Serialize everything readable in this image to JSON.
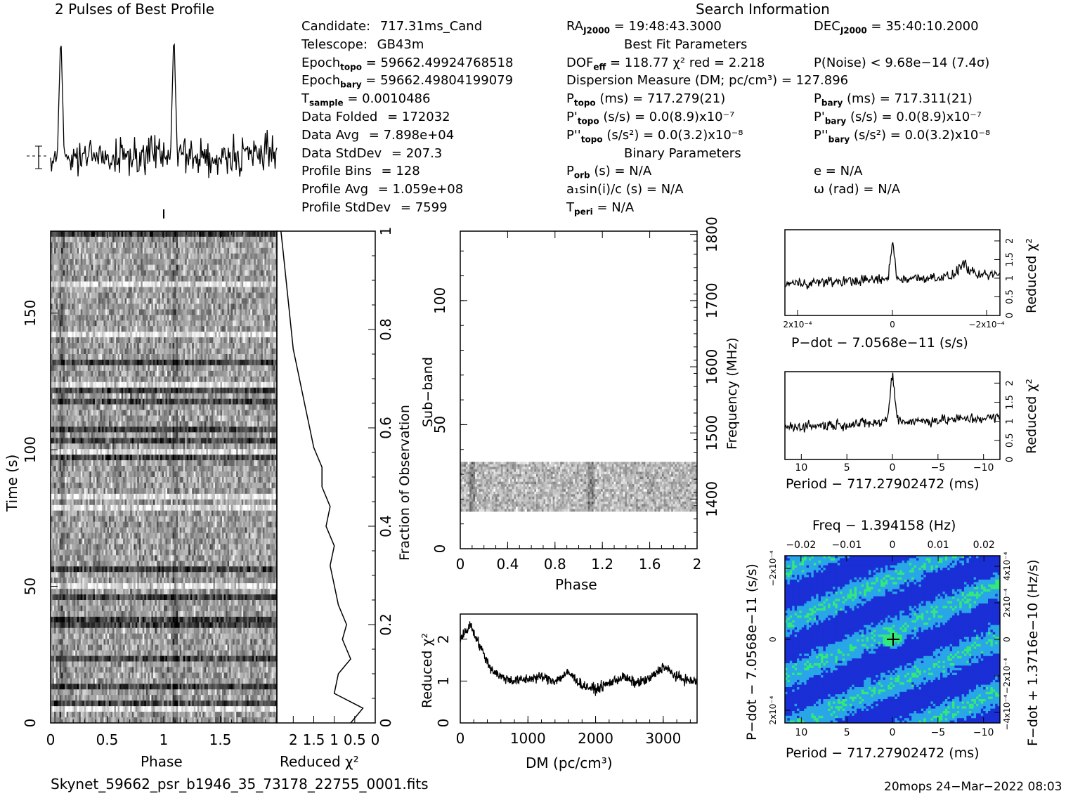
{
  "header": {
    "left_title": "2 Pulses of Best Profile",
    "right_title": "Search Information"
  },
  "info": {
    "col1": [
      {
        "label": "Candidate:",
        "value": "717.31ms_Cand"
      },
      {
        "label": "Telescope:",
        "value": "GB43m"
      },
      {
        "label": "Epoch",
        "sub": "topo",
        "value": "= 59662.49924768518"
      },
      {
        "label": "Epoch",
        "sub": "bary",
        "value": "= 59662.49804199079"
      },
      {
        "label": "T",
        "sub": "sample",
        "value": "=   0.0010486"
      },
      {
        "label": "Data Folded",
        "value": "=   172032"
      },
      {
        "label": "Data Avg",
        "value": "=   7.898e+04"
      },
      {
        "label": "Data StdDev",
        "value": "=   207.3"
      },
      {
        "label": "Profile Bins",
        "value": "=   128"
      },
      {
        "label": "Profile Avg",
        "value": "=   1.059e+08"
      },
      {
        "label": "Profile StdDev",
        "value": "=   7599"
      }
    ],
    "col2": [
      {
        "label": "RA",
        "sub": "J2000",
        "value": "= 19:48:43.3000"
      },
      {
        "label": "Best Fit Parameters",
        "centered": true
      },
      {
        "label": "DOF",
        "sub": "eff",
        "value": "= 118.77  χ² red = 2.218"
      },
      {
        "label": "Dispersion Measure (DM; pc/cm³) = 127.896"
      },
      {
        "label": "P",
        "sub": "topo",
        "value": "(ms)  =  717.279(21)"
      },
      {
        "label": "P'",
        "sub": "topo",
        "value": "(s/s) = 0.0(8.9)x10⁻⁷"
      },
      {
        "label": "P''",
        "sub": "topo",
        "value": "(s/s²) = 0.0(3.2)x10⁻⁸"
      },
      {
        "label": "Binary Parameters",
        "centered": true
      },
      {
        "label": "P",
        "sub": "orb",
        "value": "(s) = N/A"
      },
      {
        "label": "a₁sin(i)/c (s) = N/A"
      },
      {
        "label": "T",
        "sub": "peri",
        "value": "= N/A"
      }
    ],
    "col3": [
      {
        "label": "DEC",
        "sub": "J2000",
        "value": "= 35:40:10.2000"
      },
      {
        "label": ""
      },
      {
        "label": "P(Noise) < 9.68e−14  (7.4σ)"
      },
      {
        "label": ""
      },
      {
        "label": "P",
        "sub": "bary",
        "value": "(ms) =  717.311(21)"
      },
      {
        "label": "P'",
        "sub": "bary",
        "value": "(s/s) = 0.0(8.9)x10⁻⁷"
      },
      {
        "label": "P''",
        "sub": "bary",
        "value": "(s/s²) = 0.0(3.2)x10⁻⁸"
      },
      {
        "label": ""
      },
      {
        "label": "e = N/A"
      },
      {
        "label": "ω (rad) = N/A"
      },
      {
        "label": ""
      }
    ]
  },
  "footer": {
    "filename": "Skynet_59662_psr_b1946_35_73178_22755_0001.fits",
    "stamp": "20mops 24−Mar−2022 08:03"
  },
  "axes": {
    "time_label": "Time (s)",
    "phase_label": "Phase",
    "redchi_label": "Reduced χ²",
    "fraction_label": "Fraction of Observation",
    "subband_label": "Sub−band",
    "frequency_label": "Frequency (MHz)",
    "dm_label": "DM (pc/cm³)",
    "pdot_label": "P−dot − 7.0568e−11 (s/s)",
    "period_label": "Period − 717.27902472 (ms)",
    "freq_label": "Freq − 1.394158 (Hz)",
    "pdot_map_label": "P−dot − 7.0568e−11 (s/s)",
    "fdot_label": "F−dot + 1.3716e−10 (Hz/s)"
  },
  "chart_data": [
    {
      "type": "line",
      "name": "profile",
      "title": "2 Pulses of Best Profile",
      "x": [
        0,
        2
      ],
      "peaks_at_phase": [
        0.09,
        1.09
      ]
    },
    {
      "type": "heatmap",
      "name": "time-phase",
      "xlabel": "Phase",
      "ylabel": "Time (s)",
      "xlim": [
        0,
        2
      ],
      "ylim": [
        0,
        180
      ],
      "xticks": [
        "0",
        "0.5",
        "1",
        "1.5"
      ],
      "yticks": [
        "0",
        "50",
        "100",
        "150"
      ]
    },
    {
      "type": "line",
      "name": "time-redchi",
      "xlabel": "Reduced χ²",
      "ylabel2": "Fraction of Observation",
      "xticks": [
        "2",
        "1.5",
        "1",
        "0.5",
        "0"
      ],
      "yticks": [
        "0",
        "0.2",
        "0.4",
        "0.6",
        "0.8",
        "1"
      ],
      "points": [
        [
          0.6,
          0.0
        ],
        [
          0.3,
          0.03
        ],
        [
          1.0,
          0.06
        ],
        [
          0.9,
          0.1
        ],
        [
          0.6,
          0.13
        ],
        [
          0.8,
          0.17
        ],
        [
          0.7,
          0.2
        ],
        [
          0.9,
          0.24
        ],
        [
          1.0,
          0.28
        ],
        [
          1.1,
          0.32
        ],
        [
          1.0,
          0.36
        ],
        [
          1.2,
          0.4
        ],
        [
          1.1,
          0.44
        ],
        [
          1.3,
          0.48
        ],
        [
          1.3,
          0.52
        ],
        [
          1.5,
          0.56
        ],
        [
          1.6,
          0.6
        ],
        [
          1.7,
          0.64
        ],
        [
          1.8,
          0.68
        ],
        [
          1.9,
          0.72
        ],
        [
          2.0,
          0.76
        ],
        [
          2.05,
          0.8
        ],
        [
          2.1,
          0.84
        ],
        [
          2.15,
          0.88
        ],
        [
          2.2,
          0.92
        ],
        [
          2.25,
          0.96
        ],
        [
          2.3,
          1.0
        ]
      ]
    },
    {
      "type": "heatmap",
      "name": "subband-phase",
      "xlabel": "Phase",
      "ylabel": "Sub−band",
      "ylabel2": "Frequency (MHz)",
      "xticks": [
        "0",
        "0.4",
        "0.8",
        "1.2",
        "1.6",
        "2"
      ],
      "yticks": [
        "0",
        "50",
        "100"
      ],
      "yticks2": [
        "1400",
        "1500",
        "1600",
        "1700",
        "1800"
      ],
      "active_subbands": [
        15,
        35
      ]
    },
    {
      "type": "line",
      "name": "dm-redchi",
      "xlabel": "DM (pc/cm³)",
      "ylabel": "Reduced χ²",
      "xticks": [
        "0",
        "1000",
        "2000",
        "3000"
      ],
      "yticks": [
        "0",
        "1",
        "2"
      ],
      "points": [
        [
          0,
          2.0
        ],
        [
          150,
          2.35
        ],
        [
          300,
          1.8
        ],
        [
          450,
          1.3
        ],
        [
          600,
          1.1
        ],
        [
          800,
          1.0
        ],
        [
          1000,
          1.05
        ],
        [
          1200,
          1.1
        ],
        [
          1400,
          1.0
        ],
        [
          1600,
          1.2
        ],
        [
          1800,
          0.9
        ],
        [
          2000,
          0.8
        ],
        [
          2200,
          0.95
        ],
        [
          2400,
          1.1
        ],
        [
          2600,
          0.95
        ],
        [
          2800,
          1.05
        ],
        [
          3000,
          1.35
        ],
        [
          3200,
          1.1
        ],
        [
          3400,
          1.0
        ],
        [
          3500,
          1.0
        ]
      ]
    },
    {
      "type": "line",
      "name": "pdot-redchi",
      "xlabel": "P−dot − 7.0568e−11 (s/s)",
      "ylabel": "Reduced χ²",
      "xticks": [
        "2x10⁻⁴",
        "0",
        "−2x10⁻⁴"
      ],
      "yticks": [
        "0",
        "0.5",
        "1",
        "1.5",
        "2"
      ]
    },
    {
      "type": "line",
      "name": "period-redchi",
      "xlabel": "Period − 717.27902472 (ms)",
      "ylabel": "Reduced χ²",
      "xticks": [
        "10",
        "5",
        "0",
        "−5",
        "−10"
      ],
      "yticks": [
        "0",
        "0.5",
        "1",
        "1.5",
        "2"
      ]
    },
    {
      "type": "heatmap",
      "name": "period-pdot-map",
      "xlabel": "Period − 717.27902472 (ms)",
      "ylabel": "P−dot − 7.0568e−11 (s/s)",
      "xlabel2": "Freq − 1.394158 (Hz)",
      "ylabel2": "F−dot + 1.3716e−10 (Hz/s)",
      "xticks": [
        "10",
        "5",
        "0",
        "−5",
        "−10"
      ],
      "xticks2": [
        "−0.02",
        "−0.01",
        "0",
        "0.01",
        "0.02"
      ],
      "yticks": [
        "2x10⁻⁴",
        "0",
        "−2x10⁻⁴"
      ],
      "yticks2": [
        "−4x10⁻⁴",
        "−2x10⁻⁴",
        "0",
        "2x10⁻⁴",
        "4x10⁻⁴"
      ],
      "colors": {
        "low": "#1a2fd6",
        "mid": "#29a6e8",
        "high": "#33e87a"
      }
    }
  ]
}
